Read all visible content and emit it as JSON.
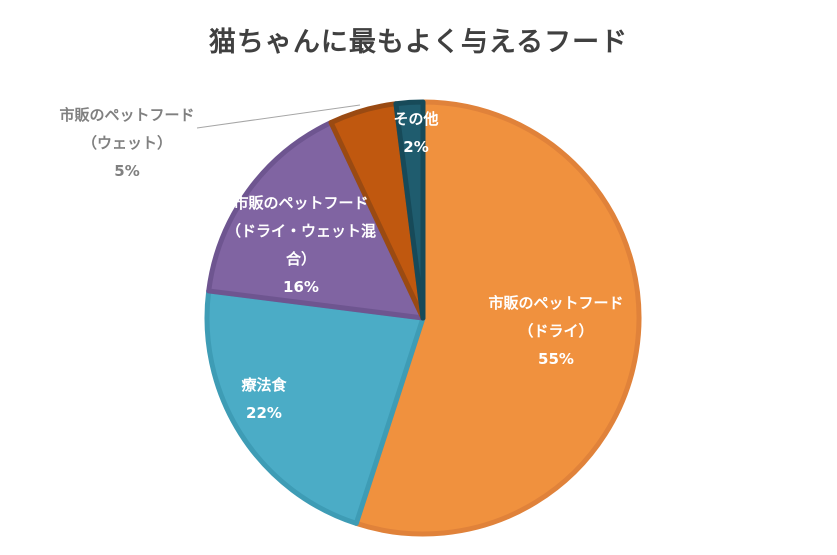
{
  "chart_data": {
    "type": "pie",
    "title": "猫ちゃんに最もよく与えるフード",
    "start_angle_deg": 0,
    "direction": "clockwise",
    "slices": [
      {
        "name": "市販のペットフード",
        "name2": "（ドライ）",
        "name3": "",
        "pct_label": "55%",
        "value": 55,
        "color": "#F0913E",
        "border": "#E0823A",
        "label_color": "#ffffff"
      },
      {
        "name": "療法食",
        "name2": "",
        "name3": "",
        "pct_label": "22%",
        "value": 22,
        "color": "#4BACC6",
        "border": "#3E9CB5",
        "label_color": "#ffffff"
      },
      {
        "name": "市販のペットフード",
        "name2": "（ドライ・ウェット混",
        "name3": "合）",
        "pct_label": "16%",
        "value": 16,
        "color": "#8064A2",
        "border": "#6E5590",
        "label_color": "#ffffff"
      },
      {
        "name": "市販のペットフード",
        "name2": "（ウェット）",
        "name3": "",
        "pct_label": "5%",
        "value": 5,
        "color": "#C0580F",
        "border": "#9A4A12",
        "label_color": "#808080"
      },
      {
        "name": "その他",
        "name2": "",
        "name3": "",
        "pct_label": "2%",
        "value": 2,
        "color": "#1F5C6E",
        "border": "#174A59",
        "label_color": "#ffffff"
      }
    ],
    "legend": "none",
    "data_labels": "category name and percentage"
  }
}
